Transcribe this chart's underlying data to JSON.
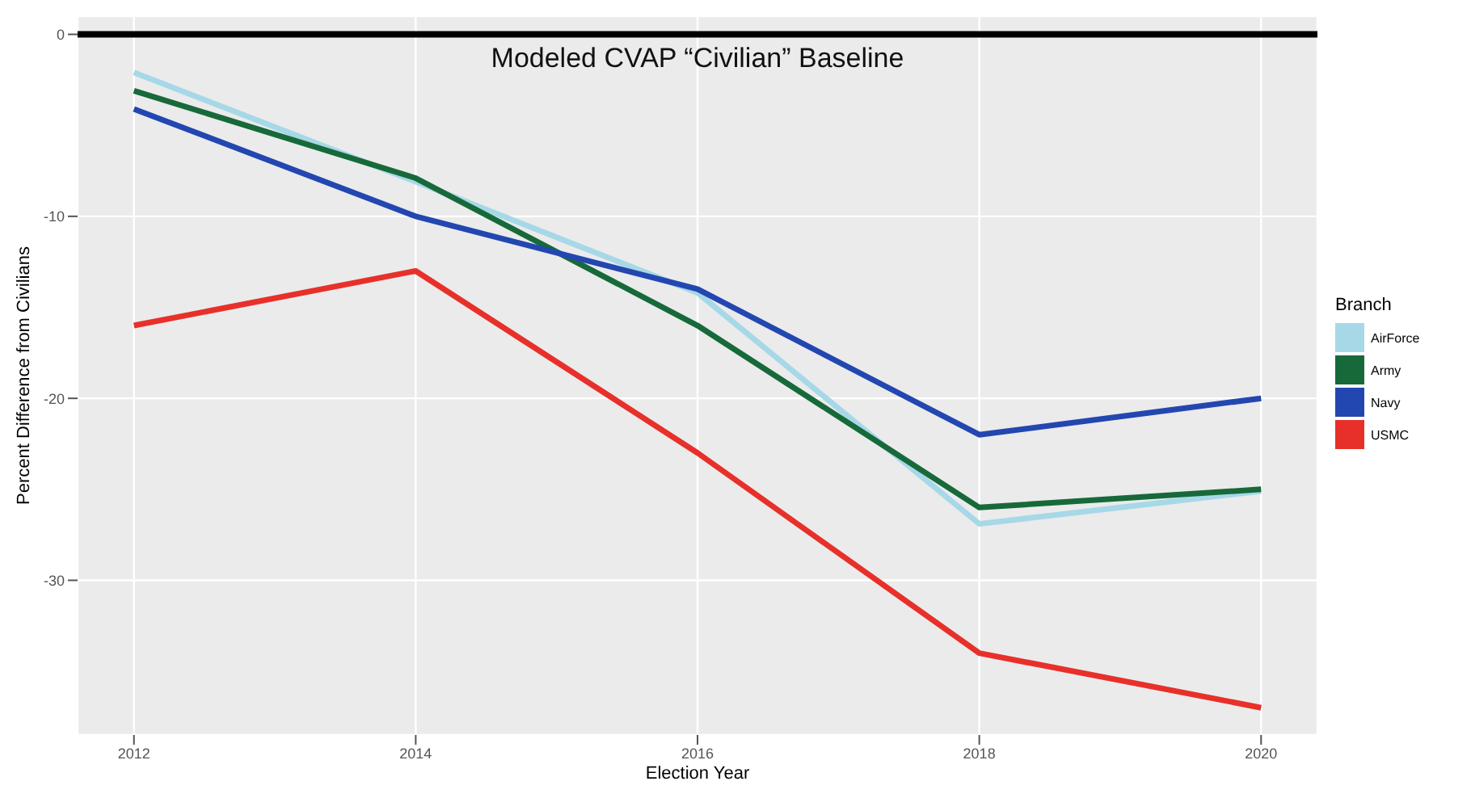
{
  "chart_data": {
    "type": "line",
    "xlabel": "Election Year",
    "ylabel": "Percent Difference from Civilians",
    "legend_title": "Branch",
    "legend": "right",
    "grid": true,
    "marker": "none",
    "line_style": "solid",
    "x": [
      2012,
      2014,
      2016,
      2018,
      2020
    ],
    "xlim": [
      2011.6,
      2020.4
    ],
    "xticks": [
      2012,
      2014,
      2016,
      2018,
      2020
    ],
    "ylim": [
      -38.5,
      1
    ],
    "yticks": [
      0,
      -10,
      -20,
      -30
    ],
    "series": [
      {
        "name": "AirForce",
        "color": "#a6d8e8",
        "values": [
          -2.1,
          -8.1,
          -14.2,
          -26.9,
          -25.1
        ]
      },
      {
        "name": "Army",
        "color": "#17693a",
        "values": [
          -3.1,
          -7.9,
          -16,
          -26,
          -25
        ]
      },
      {
        "name": "Navy",
        "color": "#2347b0",
        "values": [
          -4.1,
          -10,
          -14,
          -22,
          -20
        ]
      },
      {
        "name": "USMC",
        "color": "#e8302a",
        "values": [
          -16,
          -13,
          -23,
          -34,
          -37
        ]
      }
    ],
    "ref_lines": [
      {
        "axis": "y",
        "value": 0,
        "label": "Modeled CVAP “Civilian” Baseline",
        "color": "#000000"
      }
    ]
  }
}
